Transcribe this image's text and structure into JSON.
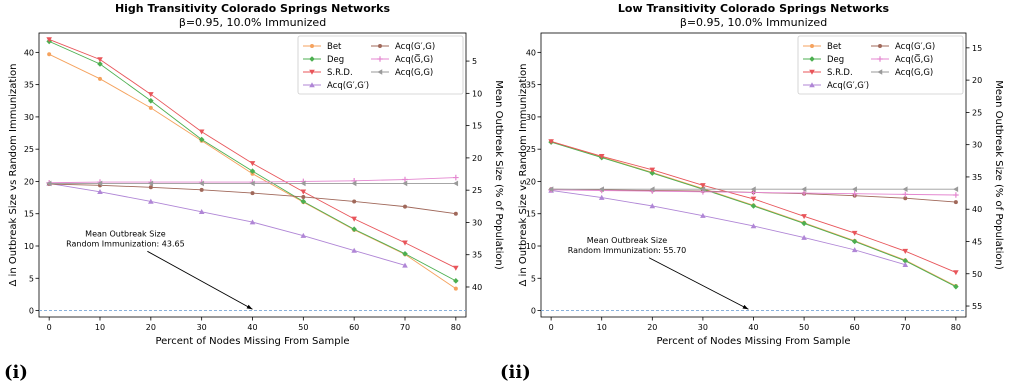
{
  "panels": [
    {
      "label": "(i)"
    },
    {
      "label": "(ii)"
    }
  ],
  "chart_data": [
    {
      "type": "line",
      "title": "High Transitivity Colorado Springs Networks",
      "subtitle": "β=0.95, 10.0% Immunized",
      "xlabel": "Percent of Nodes Missing From Sample",
      "ylabel": "Δ in Outbreak Size vs Random Immunization",
      "ylabel_right": "Mean Outbreak Size (% of Population)",
      "x": [
        0,
        10,
        20,
        30,
        40,
        50,
        60,
        70,
        80
      ],
      "xlim": [
        -2,
        82
      ],
      "ylim": [
        -1,
        43
      ],
      "yticks": [
        0,
        5,
        10,
        15,
        20,
        25,
        30,
        35,
        40
      ],
      "yticks_right": [
        5,
        10,
        15,
        20,
        25,
        30,
        35,
        40
      ],
      "right_offset": 43.65,
      "grid": false,
      "legend_position": "top-right",
      "baseline": 0,
      "annotation": {
        "lines": [
          "Mean Outbreak Size",
          "Random Immunization: 43.65"
        ],
        "arrow_to": [
          40,
          0.2
        ],
        "anchor": [
          15,
          11.5
        ]
      },
      "series": [
        {
          "name": "Bet",
          "color": "#f5a25d",
          "marker": "dot",
          "values": [
            39.7,
            35.9,
            31.4,
            26.3,
            21.2,
            16.8,
            12.5,
            8.7,
            3.4
          ]
        },
        {
          "name": "Deg",
          "color": "#4caf50",
          "marker": "diamond",
          "values": [
            41.7,
            38.2,
            32.5,
            26.5,
            21.6,
            16.9,
            12.6,
            8.8,
            4.6
          ]
        },
        {
          "name": "S.R.D.",
          "color": "#e8555a",
          "marker": "tri-down",
          "values": [
            42.0,
            38.9,
            33.5,
            27.7,
            22.8,
            18.4,
            14.2,
            10.5,
            6.6
          ]
        },
        {
          "name": "Acq(G′,G′)",
          "color": "#b086d6",
          "marker": "tri-up",
          "values": [
            19.7,
            18.4,
            16.9,
            15.3,
            13.7,
            11.6,
            9.3,
            7.0,
            null
          ]
        },
        {
          "name": "Acq(G′,G)",
          "color": "#a0685a",
          "marker": "dot",
          "values": [
            19.6,
            19.4,
            19.1,
            18.7,
            18.2,
            17.6,
            16.9,
            16.1,
            15.0
          ]
        },
        {
          "name": "Acq(G̅,G)",
          "color": "#e487d0",
          "marker": "plus",
          "values": [
            19.8,
            19.9,
            19.9,
            19.9,
            19.9,
            20.0,
            20.1,
            20.3,
            20.6
          ]
        },
        {
          "name": "Acq(G,G)",
          "color": "#9a9a9a",
          "marker": "tri-left",
          "values": [
            19.7,
            19.7,
            19.7,
            19.7,
            19.7,
            19.7,
            19.7,
            19.7,
            19.7
          ]
        }
      ]
    },
    {
      "type": "line",
      "title": "Low Transitivity Colorado Springs Networks",
      "subtitle": "β=0.95, 10.0% Immunized",
      "xlabel": "Percent of Nodes Missing From Sample",
      "ylabel": "Δ in Outbreak Size vs Random Immunization",
      "ylabel_right": "Mean Outbreak Size (% of Population)",
      "x": [
        0,
        10,
        20,
        30,
        40,
        50,
        60,
        70,
        80
      ],
      "xlim": [
        -2,
        82
      ],
      "ylim": [
        -1,
        43
      ],
      "yticks": [
        0,
        5,
        10,
        15,
        20,
        25,
        30,
        35,
        40
      ],
      "yticks_right": [
        15,
        20,
        25,
        30,
        35,
        40,
        45,
        50,
        55
      ],
      "right_offset": 55.7,
      "grid": false,
      "legend_position": "top-right",
      "baseline": 0,
      "annotation": {
        "lines": [
          "Mean Outbreak Size",
          "Random Immunization: 55.70"
        ],
        "arrow_to": [
          39,
          0.2
        ],
        "anchor": [
          15,
          10.5
        ]
      },
      "series": [
        {
          "name": "Bet",
          "color": "#f5a25d",
          "marker": "dot",
          "values": [
            26.2,
            23.8,
            21.4,
            18.9,
            16.3,
            13.6,
            10.8,
            7.8,
            3.8
          ]
        },
        {
          "name": "Deg",
          "color": "#4caf50",
          "marker": "diamond",
          "values": [
            26.1,
            23.7,
            21.3,
            18.8,
            16.2,
            13.5,
            10.7,
            7.7,
            3.7
          ]
        },
        {
          "name": "S.R.D.",
          "color": "#e8555a",
          "marker": "tri-down",
          "values": [
            26.2,
            23.9,
            21.8,
            19.4,
            17.3,
            14.6,
            12.0,
            9.2,
            5.9
          ]
        },
        {
          "name": "Acq(G′,G′)",
          "color": "#b086d6",
          "marker": "tri-up",
          "values": [
            18.6,
            17.5,
            16.2,
            14.7,
            13.1,
            11.3,
            9.4,
            7.1,
            null
          ]
        },
        {
          "name": "Acq(G′,G)",
          "color": "#a0685a",
          "marker": "dot",
          "values": [
            18.8,
            18.7,
            18.6,
            18.5,
            18.3,
            18.1,
            17.8,
            17.4,
            16.8
          ]
        },
        {
          "name": "Acq(G̅,G)",
          "color": "#e487d0",
          "marker": "plus",
          "values": [
            18.7,
            18.6,
            18.5,
            18.4,
            18.3,
            18.2,
            18.1,
            18.0,
            17.9
          ]
        },
        {
          "name": "Acq(G,G)",
          "color": "#9a9a9a",
          "marker": "tri-left",
          "values": [
            18.8,
            18.8,
            18.8,
            18.8,
            18.8,
            18.8,
            18.8,
            18.8,
            18.8
          ]
        }
      ]
    }
  ]
}
